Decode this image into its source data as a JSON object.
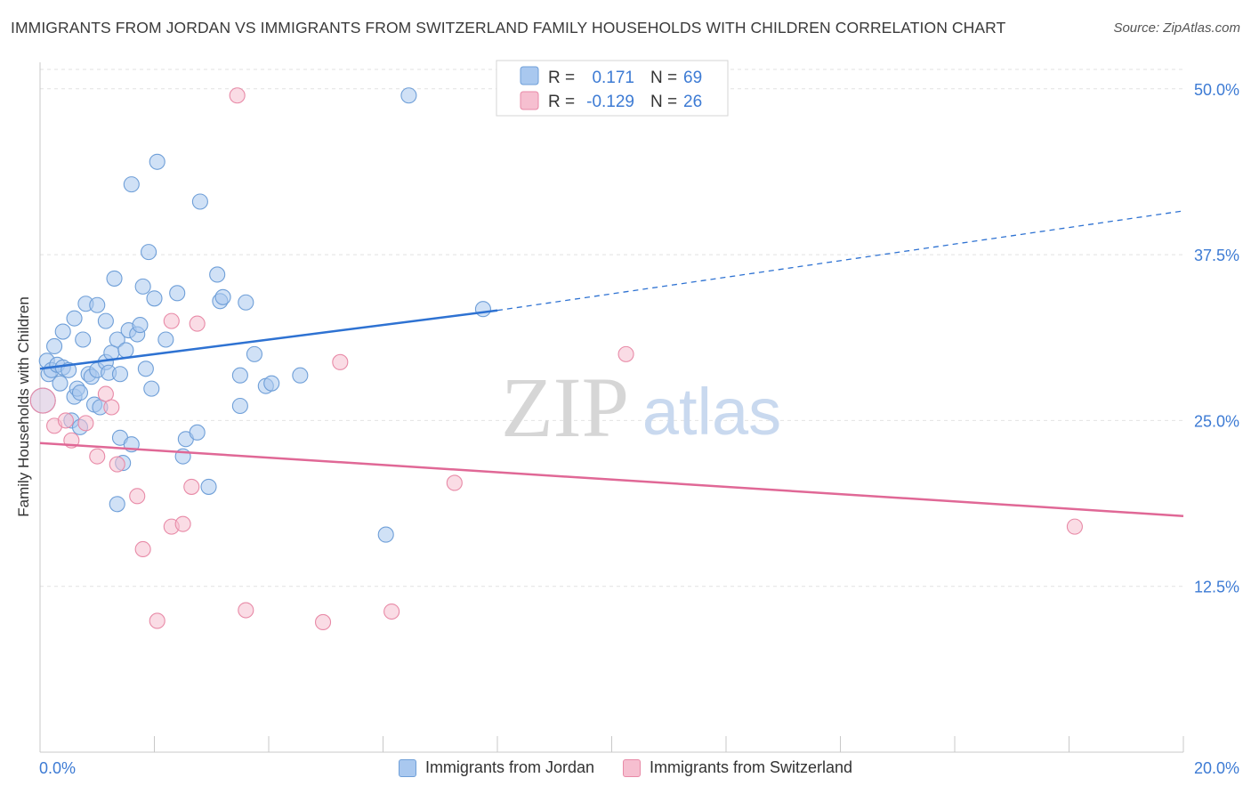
{
  "title": "IMMIGRANTS FROM JORDAN VS IMMIGRANTS FROM SWITZERLAND FAMILY HOUSEHOLDS WITH CHILDREN CORRELATION CHART",
  "source": "Source: ZipAtlas.com",
  "watermark": {
    "part1": "ZIP",
    "part2": "atlas"
  },
  "colors": {
    "blue_fill": "#a9c8ef",
    "blue_stroke": "#6f9fd8",
    "blue_line": "#2e72d2",
    "pink_fill": "#f6bfd0",
    "pink_stroke": "#e88aa7",
    "pink_line": "#e06896",
    "axis_label": "#3d7bd4",
    "grid": "#e2e2e2"
  },
  "stats_legend": [
    {
      "r_label": "R =",
      "r_value": "0.171",
      "n_label": "N =",
      "n_value": "69"
    },
    {
      "r_label": "R =",
      "r_value": "-0.129",
      "n_label": "N =",
      "n_value": "26"
    }
  ],
  "chart_data": {
    "type": "scatter",
    "xlabel": "",
    "ylabel": "Family Households with Children",
    "xlim": [
      0,
      20
    ],
    "ylim": [
      0,
      52
    ],
    "x_tick_labels": [
      "0.0%",
      "20.0%"
    ],
    "y_ticks": [
      12.5,
      25.0,
      37.5,
      50.0
    ],
    "y_tick_labels": [
      "12.5%",
      "25.0%",
      "37.5%",
      "50.0%"
    ],
    "grid": true,
    "legend_position": "top-center",
    "series": [
      {
        "name": "Immigrants from Jordan",
        "color": "blue",
        "r": 0.171,
        "n": 69,
        "trend": {
          "x_start": 0,
          "y_start": 28.9,
          "x_solid_end": 8.0,
          "y_solid_end": 33.3,
          "x_end": 20,
          "y_end": 40.8
        },
        "points": [
          [
            0.05,
            26.5
          ],
          [
            0.12,
            29.5
          ],
          [
            0.15,
            28.5
          ],
          [
            0.2,
            28.8
          ],
          [
            0.25,
            30.6
          ],
          [
            0.3,
            29.2
          ],
          [
            0.35,
            27.8
          ],
          [
            0.4,
            29.0
          ],
          [
            0.4,
            31.7
          ],
          [
            0.5,
            28.8
          ],
          [
            0.55,
            25.0
          ],
          [
            0.6,
            32.7
          ],
          [
            0.6,
            26.8
          ],
          [
            0.65,
            27.4
          ],
          [
            0.7,
            24.5
          ],
          [
            0.7,
            27.1
          ],
          [
            0.75,
            31.1
          ],
          [
            0.8,
            33.8
          ],
          [
            0.85,
            28.5
          ],
          [
            0.9,
            28.3
          ],
          [
            0.95,
            26.2
          ],
          [
            1.0,
            33.7
          ],
          [
            1.0,
            28.8
          ],
          [
            1.05,
            26.0
          ],
          [
            1.15,
            32.5
          ],
          [
            1.15,
            29.4
          ],
          [
            1.2,
            28.6
          ],
          [
            1.25,
            30.1
          ],
          [
            1.3,
            35.7
          ],
          [
            1.35,
            31.1
          ],
          [
            1.35,
            18.7
          ],
          [
            1.4,
            23.7
          ],
          [
            1.4,
            28.5
          ],
          [
            1.45,
            21.8
          ],
          [
            1.5,
            30.3
          ],
          [
            1.55,
            31.8
          ],
          [
            1.6,
            42.8
          ],
          [
            1.6,
            23.2
          ],
          [
            1.7,
            31.5
          ],
          [
            1.75,
            32.2
          ],
          [
            1.8,
            35.1
          ],
          [
            1.85,
            28.9
          ],
          [
            1.9,
            37.7
          ],
          [
            1.95,
            27.4
          ],
          [
            2.0,
            34.2
          ],
          [
            2.05,
            44.5
          ],
          [
            2.2,
            31.1
          ],
          [
            2.4,
            34.6
          ],
          [
            2.5,
            22.3
          ],
          [
            2.55,
            23.6
          ],
          [
            2.75,
            24.1
          ],
          [
            2.8,
            41.5
          ],
          [
            2.95,
            20.0
          ],
          [
            3.1,
            36.0
          ],
          [
            3.15,
            34.0
          ],
          [
            3.2,
            34.3
          ],
          [
            3.5,
            26.1
          ],
          [
            3.5,
            28.4
          ],
          [
            3.6,
            33.9
          ],
          [
            3.75,
            30.0
          ],
          [
            3.95,
            27.6
          ],
          [
            4.05,
            27.8
          ],
          [
            4.55,
            28.4
          ],
          [
            6.05,
            16.4
          ],
          [
            6.45,
            49.5
          ],
          [
            7.75,
            33.4
          ]
        ]
      },
      {
        "name": "Immigrants from Switzerland",
        "color": "pink",
        "r": -0.129,
        "n": 26,
        "trend": {
          "x_start": 0,
          "y_start": 23.3,
          "x_end": 20,
          "y_end": 17.8
        },
        "points": [
          [
            0.05,
            26.5
          ],
          [
            0.25,
            24.6
          ],
          [
            0.45,
            25.0
          ],
          [
            0.55,
            23.5
          ],
          [
            0.8,
            24.8
          ],
          [
            1.0,
            22.3
          ],
          [
            1.15,
            27.0
          ],
          [
            1.25,
            26.0
          ],
          [
            1.35,
            21.7
          ],
          [
            1.7,
            19.3
          ],
          [
            1.8,
            15.3
          ],
          [
            2.05,
            9.9
          ],
          [
            2.3,
            32.5
          ],
          [
            2.3,
            17.0
          ],
          [
            2.5,
            17.2
          ],
          [
            2.65,
            20.0
          ],
          [
            2.75,
            32.3
          ],
          [
            3.45,
            49.5
          ],
          [
            3.6,
            10.7
          ],
          [
            4.95,
            9.8
          ],
          [
            5.25,
            29.4
          ],
          [
            6.15,
            10.6
          ],
          [
            7.25,
            20.3
          ],
          [
            10.25,
            30.0
          ],
          [
            18.1,
            17.0
          ]
        ]
      }
    ]
  },
  "bottom_legend": [
    {
      "label": "Immigrants from Jordan",
      "color": "blue"
    },
    {
      "label": "Immigrants from Switzerland",
      "color": "pink"
    }
  ]
}
